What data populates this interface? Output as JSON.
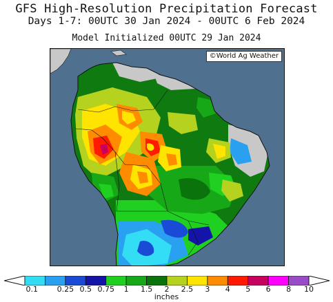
{
  "header": {
    "title": "GFS High-Resolution Precipitation Forecast",
    "period": "Days 1-7: 00UTC 30 Jan 2024 - 00UTC 6 Feb 2024",
    "init": "Model Initialized 00UTC 29 Jan 2024"
  },
  "map": {
    "region": "South America",
    "credit": "©World Ag Weather",
    "ocean_color": "#4f708e",
    "nodata_color": "#c8c8c8"
  },
  "legend": {
    "units": "inches",
    "ticks": [
      "0.1",
      "0.25",
      "0.5",
      "0.75",
      "1",
      "1.5",
      "2",
      "2.5",
      "3",
      "4",
      "5",
      "6",
      "8",
      "10"
    ],
    "colors": [
      "#33ddf4",
      "#2aa1f0",
      "#1a4bd6",
      "#1414a8",
      "#20d020",
      "#17a817",
      "#0b730b",
      "#b4d21e",
      "#ffe400",
      "#ff8c00",
      "#ff1a00",
      "#c80060",
      "#ff00ff",
      "#9a4cc8"
    ]
  }
}
